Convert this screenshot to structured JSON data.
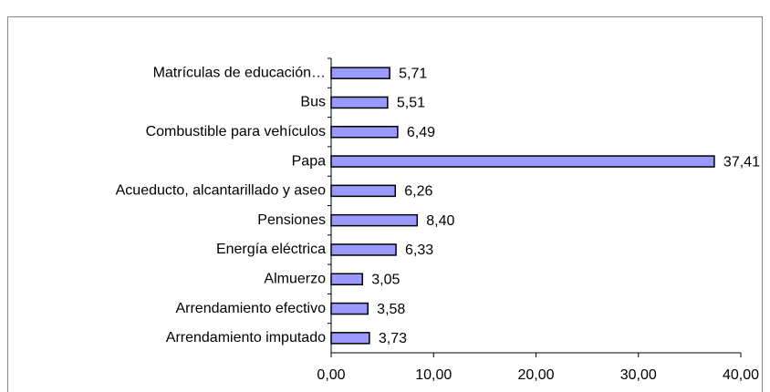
{
  "chart_data": {
    "type": "bar",
    "orientation": "horizontal",
    "categories": [
      "Matrículas de educación…",
      "Bus",
      "Combustible para vehículos",
      "Papa",
      "Acueducto, alcantarillado y aseo",
      "Pensiones",
      "Energía eléctrica",
      "Almuerzo",
      "Arrendamiento efectivo",
      "Arrendamiento imputado"
    ],
    "values": [
      5.71,
      5.51,
      6.49,
      37.41,
      6.26,
      8.4,
      6.33,
      3.05,
      3.58,
      3.73
    ],
    "value_labels": [
      "5,71",
      "5,51",
      "6,49",
      "37,41",
      "6,26",
      "8,40",
      "6,33",
      "3,05",
      "3,58",
      "3,73"
    ],
    "color": "#9999ff",
    "xlim": [
      0,
      40
    ],
    "xticks": [
      {
        "value": 0,
        "label": "0,00"
      },
      {
        "value": 10,
        "label": "10,00"
      },
      {
        "value": 20,
        "label": "20,00"
      },
      {
        "value": 30,
        "label": "30,00"
      },
      {
        "value": 40,
        "label": "40,00"
      }
    ]
  }
}
